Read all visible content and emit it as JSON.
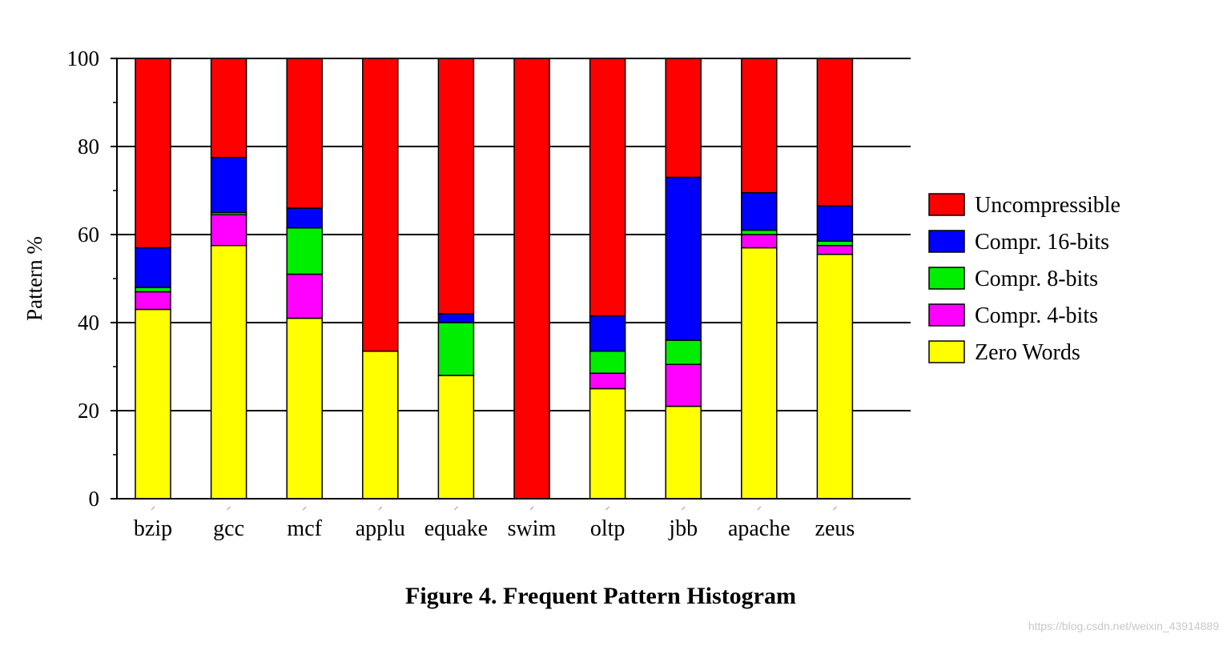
{
  "chart_data": {
    "type": "bar",
    "stacked": true,
    "title": "Figure 4. Frequent Pattern Histogram",
    "ylabel": "Pattern %",
    "xlabel": "",
    "ylim": [
      0,
      100
    ],
    "yticks": [
      "0",
      "20",
      "40",
      "60",
      "80",
      "100"
    ],
    "grid": true,
    "legend_position": "right",
    "categories": [
      "bzip",
      "gcc",
      "mcf",
      "applu",
      "equake",
      "swim",
      "oltp",
      "jbb",
      "apache",
      "zeus"
    ],
    "series": [
      {
        "name": "Zero Words",
        "color": "#ffff00",
        "values": [
          43,
          57.5,
          41,
          33.5,
          28,
          0,
          25,
          21,
          57,
          55.5
        ]
      },
      {
        "name": "Compr. 4-bits",
        "color": "#ff00ff",
        "values": [
          4,
          7,
          10,
          0,
          0,
          0,
          3.5,
          9.5,
          3,
          2
        ]
      },
      {
        "name": "Compr. 8-bits",
        "color": "#00ee00",
        "values": [
          1,
          0.5,
          10.5,
          0,
          12,
          0,
          5,
          5.5,
          1,
          1
        ]
      },
      {
        "name": "Compr. 16-bits",
        "color": "#0000ff",
        "values": [
          9,
          12.5,
          4.5,
          0,
          2,
          0,
          8,
          37,
          8.5,
          8
        ]
      },
      {
        "name": "Uncompressible",
        "color": "#ff0000",
        "values": [
          43,
          22.5,
          34,
          66.5,
          58,
          100,
          58.5,
          27,
          30.5,
          33.5
        ]
      }
    ]
  },
  "watermark": "https://blog.csdn.net/weixin_43914889"
}
